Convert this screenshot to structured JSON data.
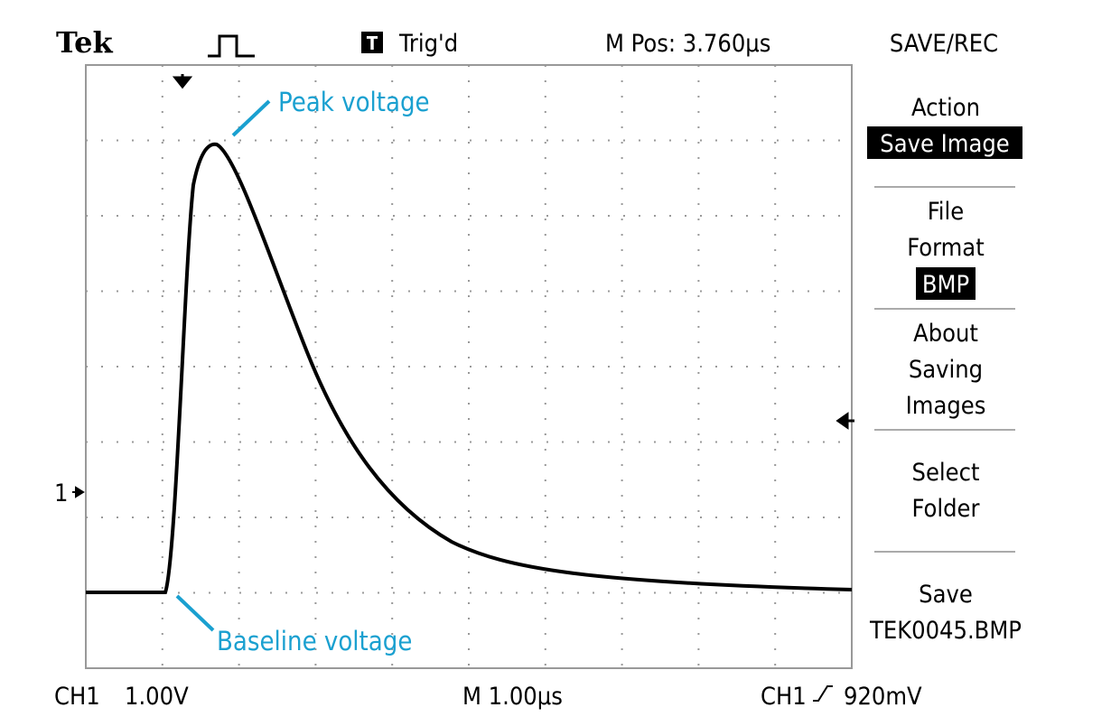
{
  "header": {
    "brand": "Tek",
    "trigger_status": "Trig'd",
    "position": "M Pos: 3.760µs"
  },
  "menu": {
    "title": "SAVE/REC",
    "action_label": "Action",
    "action_value": "Save Image",
    "format_label_1": "File",
    "format_label_2": "Format",
    "format_value": "BMP",
    "about_1": "About",
    "about_2": "Saving",
    "about_3": "Images",
    "select_1": "Select",
    "select_2": "Folder",
    "save_label": "Save",
    "save_file": "TEK0045.BMP"
  },
  "footer": {
    "channel": "CH1",
    "volts_per_div": "1.00V",
    "timebase": "M 1.00µs",
    "trigger_channel": "CH1",
    "trigger_level": "920mV"
  },
  "marker": {
    "channel_marker": "1"
  },
  "annotations": {
    "peak": "Peak voltage",
    "baseline": "Baseline voltage"
  }
}
